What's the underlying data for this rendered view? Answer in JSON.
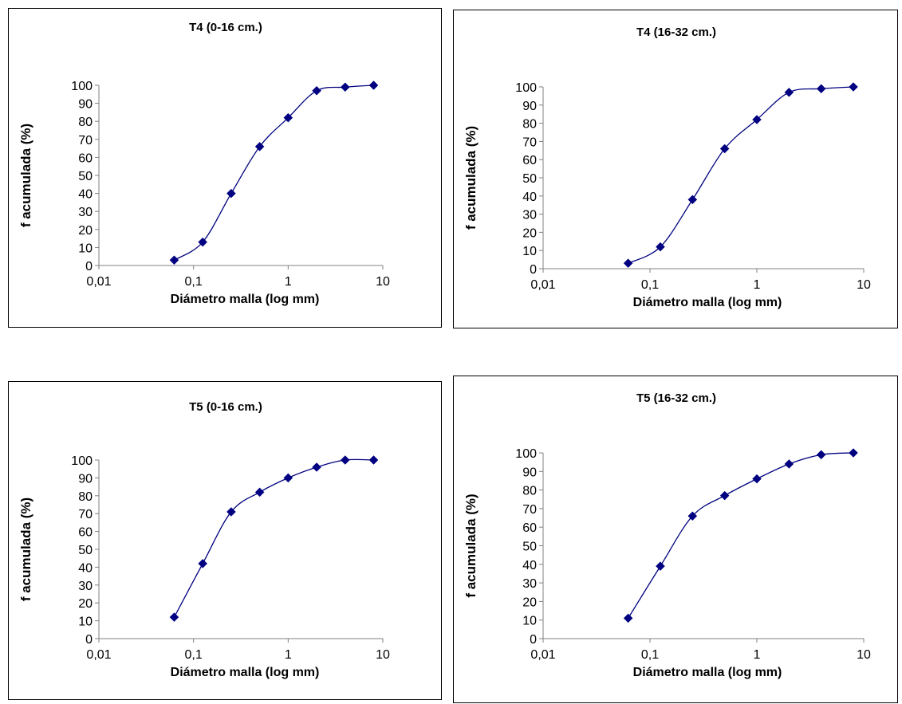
{
  "colors": {
    "series": "#000080",
    "axis": "#808080",
    "text": "#000000"
  },
  "chart_data": [
    {
      "type": "scatter",
      "title": "T4 (0-16 cm.)",
      "xlabel": "Diámetro malla (log mm)",
      "ylabel": "f acumulada (%)",
      "xscale": "log",
      "xlim": [
        0.01,
        10
      ],
      "ylim": [
        0,
        100
      ],
      "xticks": [
        0.01,
        0.1,
        1,
        10
      ],
      "xtick_labels": [
        "0,01",
        "0,1",
        "1",
        "10"
      ],
      "yticks": [
        0,
        10,
        20,
        30,
        40,
        50,
        60,
        70,
        80,
        90,
        100
      ],
      "ytick_labels": [
        "0",
        "10",
        "20",
        "30",
        "40",
        "50",
        "60",
        "70",
        "80",
        "90",
        "100"
      ],
      "smooth_line": true,
      "marker": "diamond",
      "grid": false,
      "x": [
        0.0625,
        0.125,
        0.25,
        0.5,
        1,
        2,
        4,
        8
      ],
      "y": [
        3,
        13,
        40,
        66,
        82,
        97,
        99,
        100
      ]
    },
    {
      "type": "scatter",
      "title": "T4 (16-32 cm.)",
      "xlabel": "Diámetro malla (log mm)",
      "ylabel": "f acumulada (%)",
      "xscale": "log",
      "xlim": [
        0.01,
        10
      ],
      "ylim": [
        0,
        100
      ],
      "xticks": [
        0.01,
        0.1,
        1,
        10
      ],
      "xtick_labels": [
        "0,01",
        "0,1",
        "1",
        "10"
      ],
      "yticks": [
        0,
        10,
        20,
        30,
        40,
        50,
        60,
        70,
        80,
        90,
        100
      ],
      "ytick_labels": [
        "0",
        "10",
        "20",
        "30",
        "40",
        "50",
        "60",
        "70",
        "80",
        "90",
        "100"
      ],
      "smooth_line": true,
      "marker": "diamond",
      "grid": false,
      "x": [
        0.0625,
        0.125,
        0.25,
        0.5,
        1,
        2,
        4,
        8
      ],
      "y": [
        3,
        12,
        38,
        66,
        82,
        97,
        99,
        100
      ]
    },
    {
      "type": "scatter",
      "title": "T5 (0-16 cm.)",
      "xlabel": "Diámetro malla (log mm)",
      "ylabel": "f acumulada (%)",
      "xscale": "log",
      "xlim": [
        0.01,
        10
      ],
      "ylim": [
        0,
        100
      ],
      "xticks": [
        0.01,
        0.1,
        1,
        10
      ],
      "xtick_labels": [
        "0,01",
        "0,1",
        "1",
        "10"
      ],
      "yticks": [
        0,
        10,
        20,
        30,
        40,
        50,
        60,
        70,
        80,
        90,
        100
      ],
      "ytick_labels": [
        "0",
        "10",
        "20",
        "30",
        "40",
        "50",
        "60",
        "70",
        "80",
        "90",
        "100"
      ],
      "smooth_line": true,
      "marker": "diamond",
      "grid": false,
      "x": [
        0.0625,
        0.125,
        0.25,
        0.5,
        1,
        2,
        4,
        8
      ],
      "y": [
        12,
        42,
        71,
        82,
        90,
        96,
        100,
        100
      ]
    },
    {
      "type": "scatter",
      "title": "T5 (16-32 cm.)",
      "xlabel": "Diámetro malla (log mm)",
      "ylabel": "f acumulada (%)",
      "xscale": "log",
      "xlim": [
        0.01,
        10
      ],
      "ylim": [
        0,
        100
      ],
      "xticks": [
        0.01,
        0.1,
        1,
        10
      ],
      "xtick_labels": [
        "0,01",
        "0,1",
        "1",
        "10"
      ],
      "yticks": [
        0,
        10,
        20,
        30,
        40,
        50,
        60,
        70,
        80,
        90,
        100
      ],
      "ytick_labels": [
        "0",
        "10",
        "20",
        "30",
        "40",
        "50",
        "60",
        "70",
        "80",
        "90",
        "100"
      ],
      "smooth_line": true,
      "marker": "diamond",
      "grid": false,
      "x": [
        0.0625,
        0.125,
        0.25,
        0.5,
        1,
        2,
        4,
        8
      ],
      "y": [
        11,
        39,
        66,
        77,
        86,
        94,
        99,
        100
      ]
    }
  ]
}
